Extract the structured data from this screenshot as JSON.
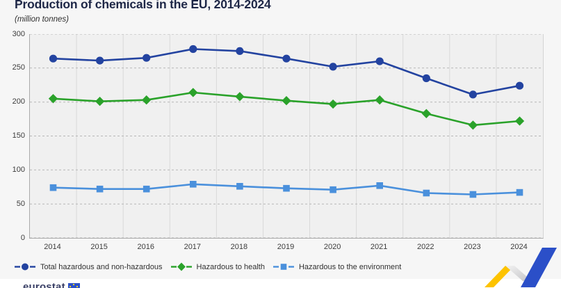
{
  "header": {
    "title": "Production of chemicals in the EU, 2014-2024",
    "subtitle": "(million tonnes)"
  },
  "chart_data": {
    "type": "line",
    "title": "Production of chemicals in the EU, 2014-2024",
    "subtitle": "(million tonnes)",
    "categories": [
      "2014",
      "2015",
      "2016",
      "2017",
      "2018",
      "2019",
      "2020",
      "2021",
      "2022",
      "2023",
      "2024"
    ],
    "series": [
      {
        "name": "Total hazardous and non-hazardous",
        "marker": "circle",
        "color": "#2343a0",
        "values": [
          264,
          261,
          265,
          278,
          275,
          264,
          252,
          260,
          235,
          211,
          224
        ]
      },
      {
        "name": "Hazardous to health",
        "marker": "diamond",
        "color": "#2aa22a",
        "values": [
          205,
          201,
          203,
          214,
          208,
          202,
          197,
          203,
          183,
          166,
          172
        ]
      },
      {
        "name": "Hazardous to the environment",
        "marker": "square",
        "color": "#4a90dc",
        "values": [
          74,
          72,
          72,
          79,
          76,
          73,
          71,
          77,
          66,
          64,
          67
        ]
      }
    ],
    "ylim": [
      0,
      300
    ],
    "ytick_interval": 50,
    "grid": true,
    "legend_position": "bottom-left"
  },
  "footer": {
    "logo_text": "eurostat"
  },
  "colors": {
    "page_background": "#f6f6f6",
    "plot_background": "#f0f0f0",
    "vertical_grid": "#d9d9d9",
    "horizontal_grid": "#b5b5b5",
    "axis_text": "#3c3c3c",
    "title_text": "#1e2747",
    "ribbon_yellow": "#fdc300",
    "ribbon_blue": "#2b4fc8"
  }
}
